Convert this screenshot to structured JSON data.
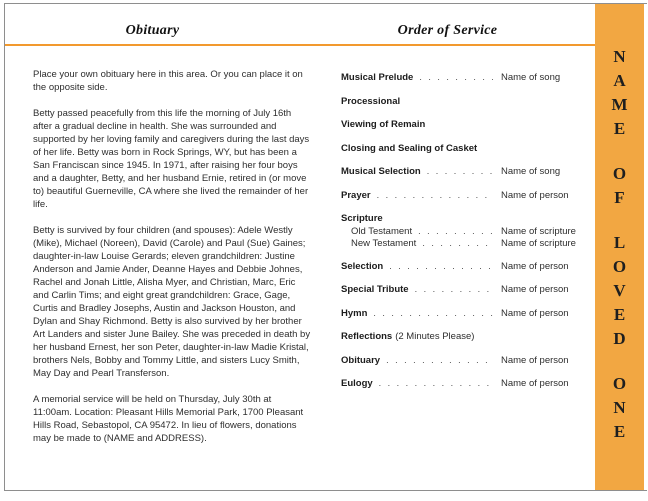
{
  "colors": {
    "accent": "#F2A742",
    "rule": "#F2992E",
    "border": "#8E8E8E"
  },
  "left_page": {
    "title": "Obituary",
    "paragraphs": [
      "Place your own obituary here in this area. Or you can place it on the opposite side.",
      "Betty passed peacefully from this life the morning of July 16th after a gradual decline in health.  She was surrounded and supported by her loving family and caregivers during the last days of her life.  Betty was born in Rock Springs, WY, but has been a San Franciscan since 1945.  In 1971, after raising her four boys and a daughter, Betty, and her husband Ernie, retired in (or move to) beautiful Guerneville, CA where she lived the remainder of her life.",
      "Betty is survived by four children (and spouses): Adele Westly (Mike), Michael (Noreen), David (Carole) and Paul (Sue) Gaines;  daughter-in-law Louise Gerards;  eleven grandchildren: Justine Anderson and Jamie Ander, Deanne Hayes and Debbie Johnes, Rachel and Jonah Little, Alisha Myer, and Christian, Marc, Eric and Carlin Tims;  and eight great grandchildren: Grace, Gage, Curtis and Bradley Josephs, Austin and Jackson Houston, and Dylan and Shay Richmond.  Betty is also survived by her brother Art Landers and sister June Bailey.  She was preceded in death by her husband Ernest, her son Peter, daughter-in-law Madie Kristal, brothers Nels, Bobby and Tommy Little, and sisters Lucy Smith, May Day and Pearl Transferson.",
      "A memorial service will be held on Thursday, July 30th at 11:00am.  Location:  Pleasant Hills Memorial Park, 1700 Pleasant Hills Road, Sebastopol, CA 95472.  In lieu of flowers, donations may be made to (NAME and ADDRESS)."
    ]
  },
  "right_page": {
    "title": "Order of Service",
    "items": [
      {
        "label": "Musical Prelude",
        "value": "Name of song"
      },
      {
        "label": "Processional"
      },
      {
        "label": "Viewing of Remain"
      },
      {
        "label": "Closing and Sealing of Casket"
      },
      {
        "label": "Musical Selection",
        "value": "Name of song"
      },
      {
        "label": "Prayer",
        "value": "Name of person"
      },
      {
        "label": "Scripture",
        "sub": [
          {
            "label": "Old Testament",
            "value": "Name of scripture"
          },
          {
            "label": "New Testament",
            "value": "Name of scripture"
          }
        ]
      },
      {
        "label": "Selection",
        "value": "Name of person"
      },
      {
        "label": "Special Tribute",
        "value": "Name of person"
      },
      {
        "label": "Hymn",
        "value": "Name of person"
      },
      {
        "label": "Reflections",
        "note": "(2 Minutes Please)"
      },
      {
        "label": "Obituary",
        "value": "Name of person"
      },
      {
        "label": "Eulogy",
        "value": "Name of person"
      }
    ]
  },
  "sidebar": {
    "text": "NAME OF LOVED ONE"
  }
}
